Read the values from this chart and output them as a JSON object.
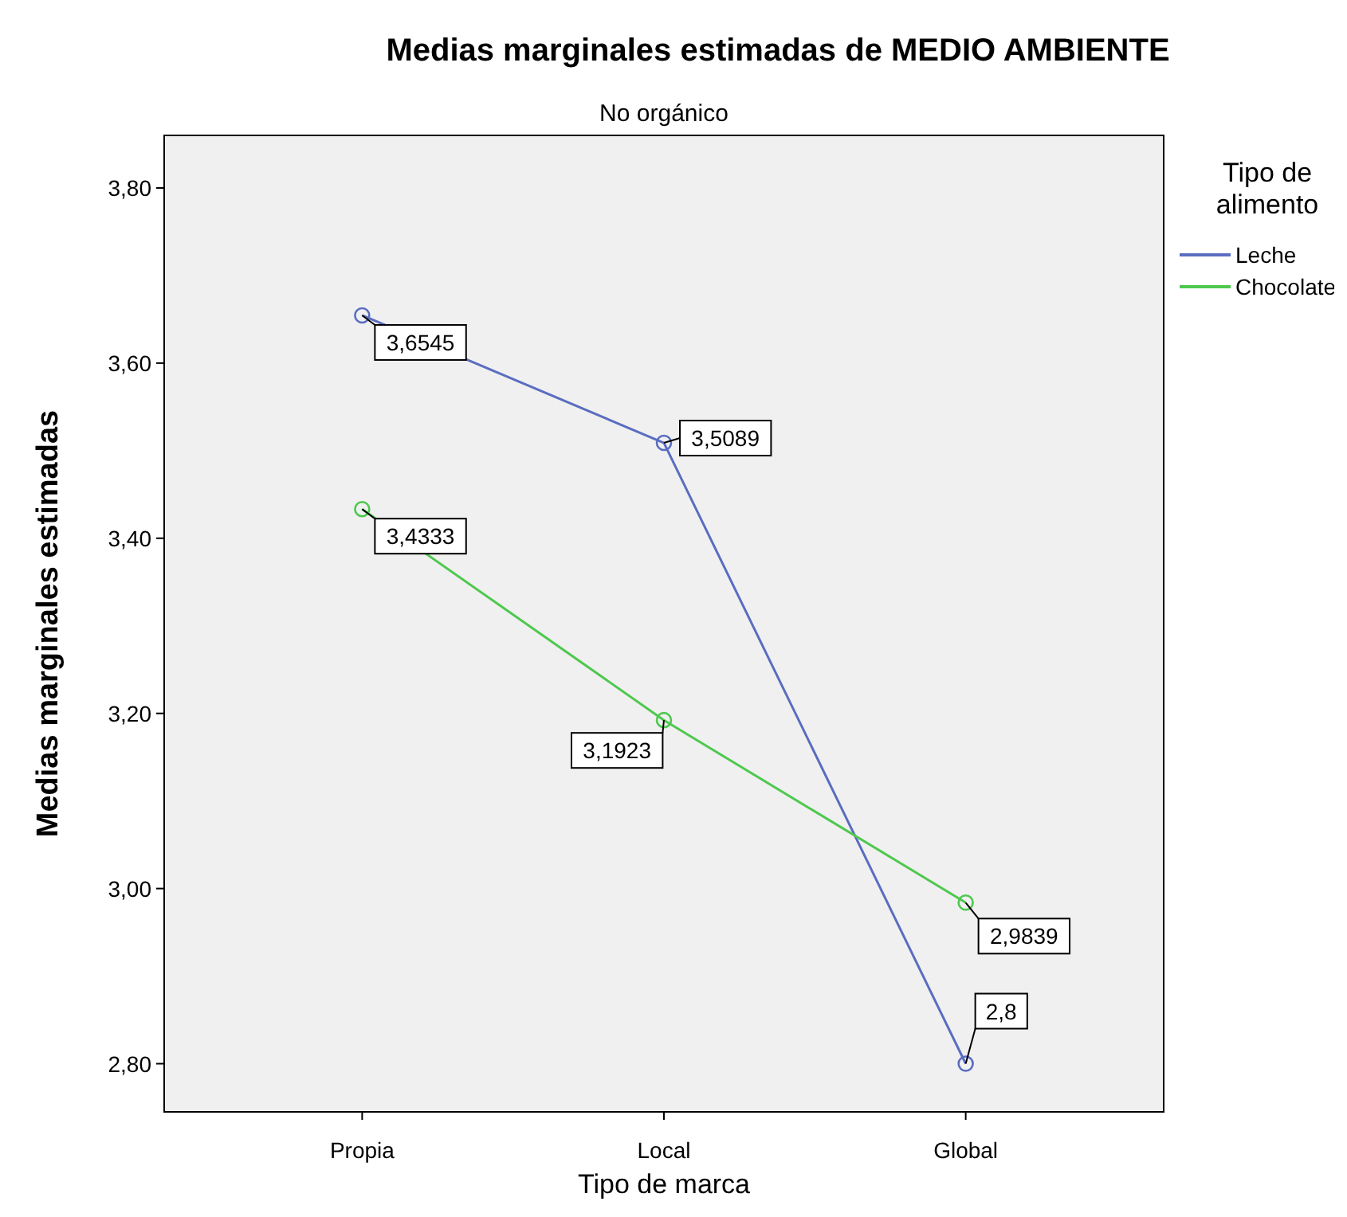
{
  "chart_data": {
    "type": "line",
    "title": "Medias marginales estimadas de MEDIO AMBIENTE",
    "subtitle": "No orgánico",
    "xlabel": "Tipo de marca",
    "ylabel": "Medias marginales estimadas",
    "legend_title": "Tipo de alimento",
    "categories": [
      "Propia",
      "Local",
      "Global"
    ],
    "series": [
      {
        "name": "Leche",
        "color": "#5a6dc0",
        "values": [
          3.6545,
          3.5089,
          2.8
        ],
        "value_labels": [
          "3,6545",
          "3,5089",
          "2,8"
        ]
      },
      {
        "name": "Chocolate",
        "color": "#4ec84e",
        "values": [
          3.4333,
          3.1923,
          2.9839
        ],
        "value_labels": [
          "3,4333",
          "3,1923",
          "2,9839"
        ]
      }
    ],
    "ylim": [
      2.745,
      3.86
    ],
    "yticks": [
      {
        "value": 2.8,
        "label": "2,80"
      },
      {
        "value": 3.0,
        "label": "3,00"
      },
      {
        "value": 3.2,
        "label": "3,20"
      },
      {
        "value": 3.4,
        "label": "3,40"
      },
      {
        "value": 3.6,
        "label": "3,60"
      },
      {
        "value": 3.8,
        "label": "3,80"
      }
    ],
    "marker": "circle",
    "line_style": "solid",
    "grid": false,
    "legend": "top right"
  }
}
